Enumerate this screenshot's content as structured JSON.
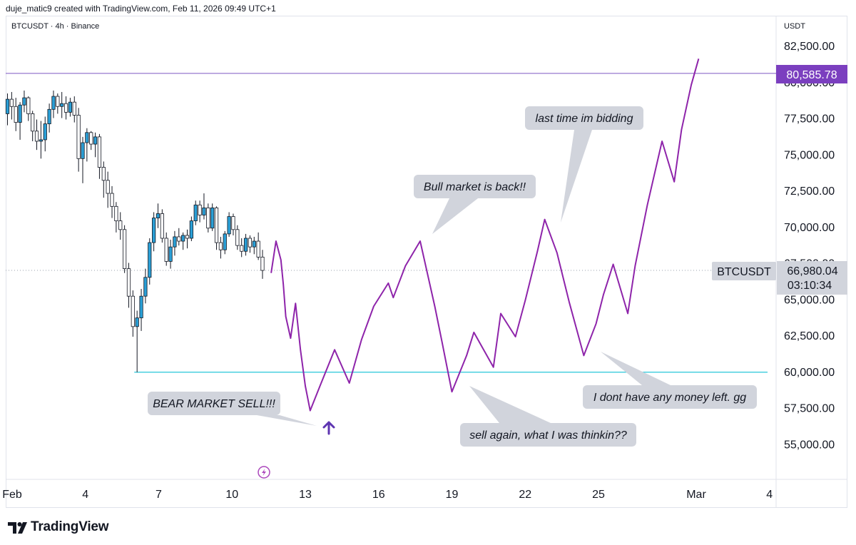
{
  "header": {
    "attribution": "duje_matic9 created with TradingView.com, Feb 11, 2026 09:49 UTC+1"
  },
  "symbol_info": "BTCUSDT · 4h · Binance",
  "currency": "USDT",
  "price_labels": {
    "resistance": "80,585.78",
    "symbol": "BTCUSDT",
    "last_price": "66,980.04",
    "countdown": "03:10:34"
  },
  "branding": {
    "name": "TradingView"
  },
  "colors": {
    "projection": "#8e24aa",
    "resistance_line": "#7e57c2",
    "support_line": "#26c6da",
    "price_badge": "#7b3fbf",
    "candle_up": "#2a9fd6",
    "candle_down": "#ffffff",
    "callout_bg": "#d1d4dc",
    "arrow": "#5e35b1"
  },
  "icons": {
    "up_arrow": "up-arrow-icon",
    "flash": "flash-icon",
    "logo": "tradingview-logo-icon"
  },
  "chart_data": {
    "type": "candlestick",
    "symbol": "BTCUSDT",
    "interval": "4h",
    "exchange": "Binance",
    "y_ticks": [
      82500,
      80000,
      77500,
      75000,
      72500,
      70000,
      67500,
      65000,
      62500,
      60000,
      57500,
      55000
    ],
    "y_tick_labels": [
      "82,500.00",
      "80,000.00",
      "77,500.00",
      "75,000.00",
      "72,500.00",
      "70,000.00",
      "67,500.00",
      "65,000.00",
      "62,500.00",
      "60,000.00",
      "57,500.00",
      "55,000.00"
    ],
    "x_ticks": [
      {
        "day": 1,
        "label": "Feb"
      },
      {
        "day": 4,
        "label": "4"
      },
      {
        "day": 7,
        "label": "7"
      },
      {
        "day": 10,
        "label": "10"
      },
      {
        "day": 13,
        "label": "13"
      },
      {
        "day": 16,
        "label": "16"
      },
      {
        "day": 19,
        "label": "19"
      },
      {
        "day": 22,
        "label": "22"
      },
      {
        "day": 25,
        "label": "25"
      },
      {
        "day": 29,
        "label": "Mar"
      },
      {
        "day": 32,
        "label": "4"
      }
    ],
    "horizontal_lines": [
      {
        "name": "resistance",
        "value": 80585.78
      },
      {
        "name": "support",
        "value": 59950,
        "from_day": 6.0
      }
    ],
    "last_price": 66980.04,
    "candles": [
      [
        77800,
        79200,
        77000,
        78800
      ],
      [
        78800,
        79300,
        77400,
        78300
      ],
      [
        78300,
        78900,
        76600,
        77200
      ],
      [
        77200,
        78600,
        76000,
        78400
      ],
      [
        78400,
        79400,
        77900,
        78900
      ],
      [
        78900,
        79000,
        77300,
        77800
      ],
      [
        77800,
        78000,
        75900,
        76600
      ],
      [
        76600,
        77400,
        75300,
        75900
      ],
      [
        75900,
        77300,
        74700,
        76000
      ],
      [
        76000,
        77600,
        75200,
        77100
      ],
      [
        77100,
        78500,
        76500,
        78100
      ],
      [
        78100,
        79400,
        77500,
        79000
      ],
      [
        79000,
        79200,
        77800,
        78300
      ],
      [
        78300,
        79300,
        77500,
        78500
      ],
      [
        78500,
        79000,
        77400,
        77900
      ],
      [
        77900,
        78900,
        77600,
        78600
      ],
      [
        78600,
        79000,
        77200,
        77700
      ],
      [
        77700,
        78200,
        73800,
        74700
      ],
      [
        74700,
        76200,
        73000,
        75800
      ],
      [
        75800,
        76800,
        74500,
        76500
      ],
      [
        76500,
        76600,
        75300,
        75700
      ],
      [
        75700,
        76500,
        74800,
        76200
      ],
      [
        76200,
        76400,
        73300,
        74100
      ],
      [
        74100,
        74500,
        72000,
        73200
      ],
      [
        73200,
        73800,
        71300,
        72300
      ],
      [
        72300,
        72800,
        70600,
        71400
      ],
      [
        71400,
        71700,
        69600,
        70400
      ],
      [
        70400,
        71000,
        69100,
        69800
      ],
      [
        69800,
        70100,
        66800,
        67100
      ],
      [
        67100,
        67500,
        64400,
        65200
      ],
      [
        65200,
        65600,
        62400,
        63100
      ],
      [
        63100,
        64200,
        59950,
        63700
      ],
      [
        63700,
        65700,
        62800,
        65200
      ],
      [
        65200,
        67100,
        64700,
        66500
      ],
      [
        66500,
        69200,
        66000,
        68900
      ],
      [
        68900,
        71000,
        68300,
        70600
      ],
      [
        70600,
        71600,
        69900,
        70900
      ],
      [
        70900,
        71200,
        68900,
        69200
      ],
      [
        69200,
        69600,
        67300,
        67600
      ],
      [
        67600,
        69100,
        67100,
        68600
      ],
      [
        68600,
        69700,
        68000,
        69300
      ],
      [
        69300,
        69900,
        68700,
        69000
      ],
      [
        69000,
        69600,
        68400,
        69400
      ],
      [
        69400,
        69800,
        68500,
        69200
      ],
      [
        69200,
        70700,
        69000,
        70400
      ],
      [
        70400,
        71800,
        70100,
        71500
      ],
      [
        71500,
        71800,
        70300,
        70800
      ],
      [
        70800,
        72300,
        70500,
        71300
      ],
      [
        71300,
        71600,
        69600,
        69900
      ],
      [
        69900,
        71600,
        69700,
        71300
      ],
      [
        71300,
        71400,
        68400,
        68900
      ],
      [
        68900,
        69300,
        67800,
        68400
      ],
      [
        68400,
        69700,
        68100,
        69500
      ],
      [
        69500,
        71000,
        69300,
        70700
      ],
      [
        70700,
        70900,
        69400,
        69800
      ],
      [
        69800,
        70100,
        68400,
        68700
      ],
      [
        68700,
        69200,
        67900,
        68300
      ],
      [
        68300,
        69500,
        68000,
        69200
      ],
      [
        69200,
        69400,
        68200,
        68600
      ],
      [
        68600,
        69300,
        68100,
        69000
      ],
      [
        69000,
        69600,
        67700,
        67900
      ],
      [
        67900,
        68400,
        66400,
        66980
      ]
    ],
    "projection_path": [
      [
        11.6,
        66800
      ],
      [
        11.8,
        69000
      ],
      [
        12.0,
        67700
      ],
      [
        12.1,
        66000
      ],
      [
        12.2,
        63800
      ],
      [
        12.4,
        62300
      ],
      [
        12.6,
        64700
      ],
      [
        12.8,
        61500
      ],
      [
        13.0,
        59000
      ],
      [
        13.2,
        57300
      ],
      [
        13.6,
        59000
      ],
      [
        14.2,
        61500
      ],
      [
        14.8,
        59200
      ],
      [
        15.3,
        62200
      ],
      [
        15.8,
        64500
      ],
      [
        16.4,
        66100
      ],
      [
        16.6,
        65100
      ],
      [
        17.1,
        67300
      ],
      [
        17.7,
        69000
      ],
      [
        18.3,
        64500
      ],
      [
        18.6,
        62000
      ],
      [
        19.0,
        58600
      ],
      [
        19.6,
        61100
      ],
      [
        19.9,
        62700
      ],
      [
        20.2,
        61800
      ],
      [
        20.7,
        60300
      ],
      [
        21.0,
        64000
      ],
      [
        21.6,
        62400
      ],
      [
        22.0,
        64900
      ],
      [
        22.5,
        68300
      ],
      [
        22.8,
        70500
      ],
      [
        23.3,
        68200
      ],
      [
        23.8,
        64800
      ],
      [
        24.4,
        61100
      ],
      [
        24.9,
        63300
      ],
      [
        25.2,
        65300
      ],
      [
        25.6,
        67400
      ],
      [
        26.2,
        64000
      ],
      [
        26.5,
        67300
      ],
      [
        27.0,
        71500
      ],
      [
        27.6,
        75900
      ],
      [
        28.1,
        73100
      ],
      [
        28.4,
        76700
      ],
      [
        28.8,
        79800
      ],
      [
        29.1,
        81600
      ]
    ],
    "annotations": [
      {
        "text": "BEAR MARKET SELL!!!",
        "target": [
          13.2,
          56000
        ]
      },
      {
        "text": "Bull market is back!!",
        "target": [
          17.7,
          69500
        ]
      },
      {
        "text": "last time im bidding",
        "target": [
          22.5,
          70200
        ]
      },
      {
        "text": "sell again, what I was thinkin??",
        "target": [
          19.3,
          58800
        ]
      },
      {
        "text": "I dont have any money left. gg",
        "target": [
          24.8,
          61300
        ]
      }
    ]
  }
}
